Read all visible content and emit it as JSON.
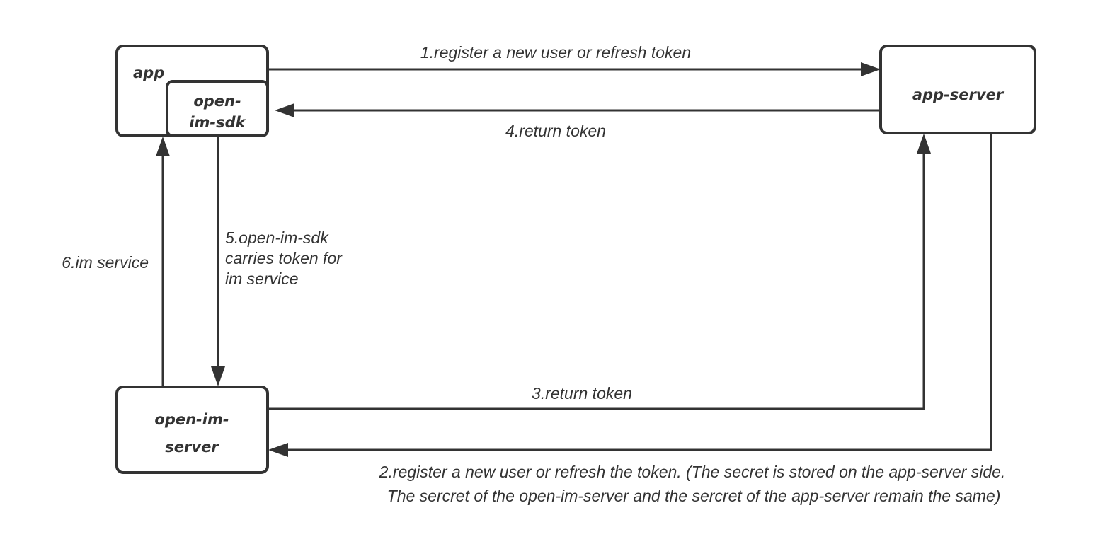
{
  "nodes": {
    "app": "app",
    "sdk_line1": "open-",
    "sdk_line2": "im-sdk",
    "app_server": "app-server",
    "im_server_line1": "open-im-",
    "im_server_line2": "server"
  },
  "edges": {
    "e1": "1.register a new user or refresh token",
    "e2_line1": "2.register a new user or refresh the token. (The secret is stored on the app-server side.",
    "e2_line2": "The sercret of the open-im-server and the sercret of the app-server remain the same)",
    "e3": "3.return token",
    "e4": "4.return token",
    "e5_line1": "5.open-im-sdk",
    "e5_line2": "carries token for",
    "e5_line3": "im service",
    "e6": "6.im service"
  }
}
